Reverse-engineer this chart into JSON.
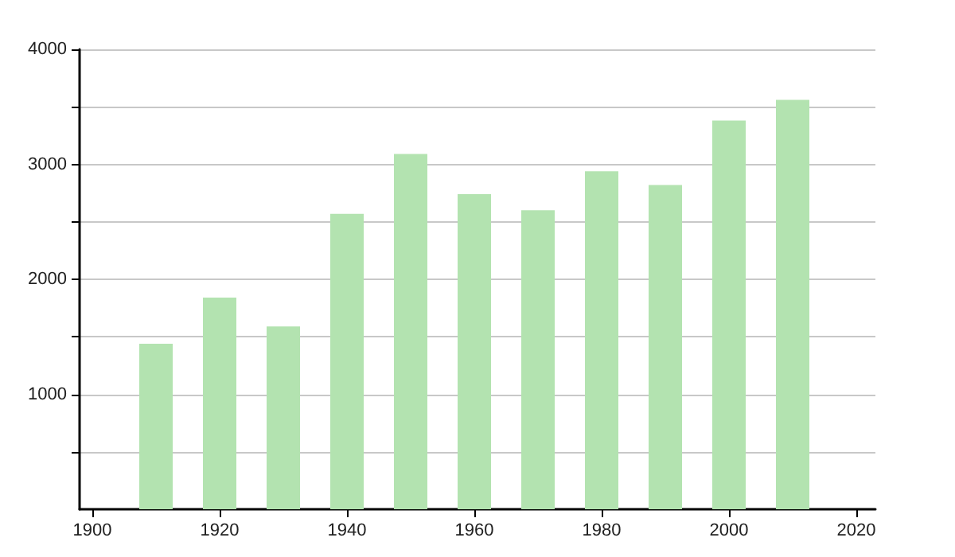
{
  "chart_data": {
    "type": "bar",
    "x": [
      1910,
      1920,
      1930,
      1940,
      1950,
      1960,
      1970,
      1980,
      1990,
      2000,
      2010
    ],
    "values": [
      1440,
      1840,
      1590,
      2570,
      3090,
      2740,
      2600,
      2940,
      2820,
      3380,
      3560
    ],
    "color": "#b3e3b0",
    "xlim": [
      1898,
      2023
    ],
    "xticks": [
      1900,
      1920,
      1940,
      1960,
      1980,
      2000,
      2020
    ],
    "ylim": [
      0,
      4000
    ],
    "yticks": [
      {
        "value": 500,
        "label": null
      },
      1000,
      {
        "value": 1500,
        "label": null
      },
      2000,
      {
        "value": 2500,
        "label": null
      },
      3000,
      {
        "value": 3500,
        "label": null
      },
      4000
    ],
    "grid": "y"
  }
}
